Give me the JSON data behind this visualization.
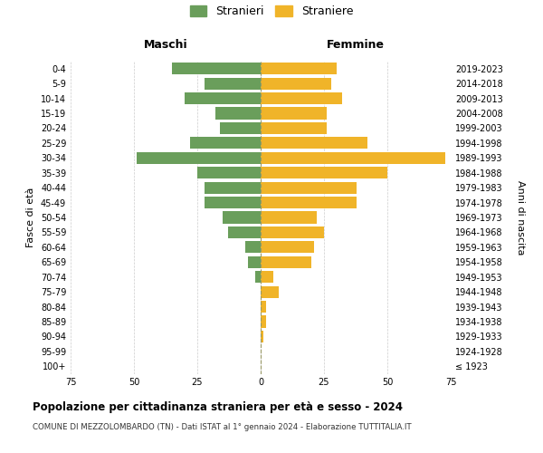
{
  "age_groups": [
    "100+",
    "95-99",
    "90-94",
    "85-89",
    "80-84",
    "75-79",
    "70-74",
    "65-69",
    "60-64",
    "55-59",
    "50-54",
    "45-49",
    "40-44",
    "35-39",
    "30-34",
    "25-29",
    "20-24",
    "15-19",
    "10-14",
    "5-9",
    "0-4"
  ],
  "birth_years": [
    "≤ 1923",
    "1924-1928",
    "1929-1933",
    "1934-1938",
    "1939-1943",
    "1944-1948",
    "1949-1953",
    "1954-1958",
    "1959-1963",
    "1964-1968",
    "1969-1973",
    "1974-1978",
    "1979-1983",
    "1984-1988",
    "1989-1993",
    "1994-1998",
    "1999-2003",
    "2004-2008",
    "2009-2013",
    "2014-2018",
    "2019-2023"
  ],
  "maschi": [
    0,
    0,
    0,
    0,
    0,
    0,
    2,
    5,
    6,
    13,
    15,
    22,
    22,
    25,
    49,
    28,
    16,
    18,
    30,
    22,
    35
  ],
  "femmine": [
    0,
    0,
    1,
    2,
    2,
    7,
    5,
    20,
    21,
    25,
    22,
    38,
    38,
    50,
    73,
    42,
    26,
    26,
    32,
    28,
    30
  ],
  "color_maschi": "#6a9e5b",
  "color_femmine": "#f0b429",
  "background_color": "#ffffff",
  "grid_color": "#cccccc",
  "xlim": 75,
  "title": "Popolazione per cittadinanza straniera per età e sesso - 2024",
  "subtitle": "COMUNE DI MEZZOLOMBARDO (TN) - Dati ISTAT al 1° gennaio 2024 - Elaborazione TUTTITALIA.IT",
  "ylabel_left": "Fasce di età",
  "ylabel_right": "Anni di nascita",
  "legend_maschi": "Stranieri",
  "legend_femmine": "Straniere",
  "header_left": "Maschi",
  "header_right": "Femmine"
}
